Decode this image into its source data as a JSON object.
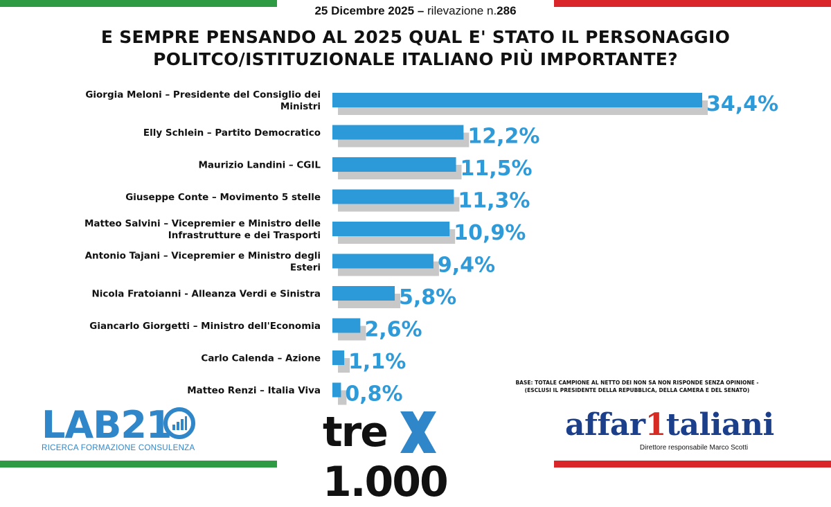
{
  "header": {
    "date": "25 Dicembre 2025",
    "sep": " – ",
    "survey_prefix": "rilevazione n.",
    "survey_number": "286"
  },
  "title": {
    "line1": "E SEMPRE PENSANDO AL 2025 QUAL E' STATO IL PERSONAGGIO",
    "line2": "POLITCO/ISTITUZIONALE ITALIANO PIÙ IMPORTANTE?"
  },
  "base_note": {
    "line1": "BASE: TOTALE CAMPIONE AL NETTO DEI NON SA NON RISPONDE SENZA OPINIONE -",
    "line2": "(ESCLUSI IL PRESIDENTE DELLA REPUBBLICA, DELLA CAMERA E DEL SENATO)"
  },
  "logos": {
    "lab21": {
      "name": "LAB21",
      "subtitle": "RICERCA FORMAZIONE CONSULENZA",
      "icon": "bar-chart-ring-icon"
    },
    "tre": {
      "name": "tre",
      "number": "1.000",
      "icon": "x-mark-icon"
    },
    "affaritaliani": {
      "part1": "affar",
      "one": "1",
      "part2": "taliani",
      "subtitle": "Direttore responsabile Marco Scotti"
    }
  },
  "colors": {
    "bar": "#2c9ad9",
    "bar_shadow": "#c8c8c8",
    "value_label": "#2f9ad8",
    "flag_green": "#2e9a44",
    "flag_red": "#d8262b"
  },
  "chart_data": {
    "type": "bar",
    "orientation": "horizontal",
    "categories": [
      [
        "Giorgia Meloni – Presidente del Consiglio dei",
        "Ministri"
      ],
      [
        "Elly Schlein – Partito Democratico"
      ],
      [
        "Maurizio Landini –  CGIL"
      ],
      [
        "Giuseppe Conte – Movimento 5 stelle"
      ],
      [
        "Matteo Salvini – Vicepremier e Ministro delle",
        "Infrastrutture e dei Trasporti"
      ],
      [
        "Antonio Tajani – Vicepremier e Ministro degli",
        "Esteri"
      ],
      [
        "Nicola Fratoianni - Alleanza Verdi e Sinistra"
      ],
      [
        "Giancarlo Giorgetti – Ministro dell'Economia"
      ],
      [
        "Carlo Calenda – Azione"
      ],
      [
        "Matteo Renzi – Italia Viva"
      ]
    ],
    "values": [
      34.4,
      12.2,
      11.5,
      11.3,
      10.9,
      9.4,
      5.8,
      2.6,
      1.1,
      0.8
    ],
    "value_labels": [
      "34,4%",
      "12,2%",
      "11,5%",
      "11,3%",
      "10,9%",
      "9,4%",
      "5,8%",
      "2,6%",
      "1,1%",
      "0,8%"
    ],
    "unit": "%",
    "xlim": [
      0,
      34.4
    ],
    "grid": false,
    "legend": "none"
  }
}
